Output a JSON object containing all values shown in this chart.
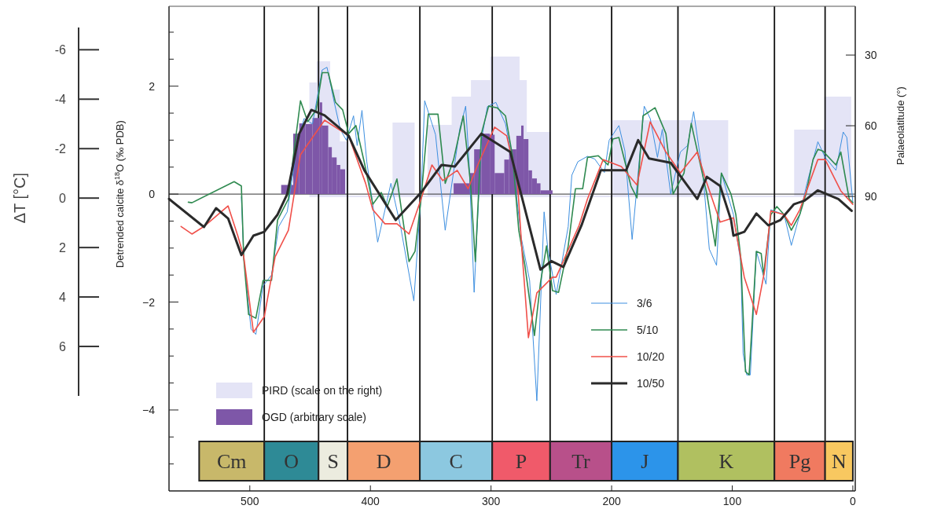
{
  "chart_data": {
    "type": "line",
    "ylabel": "Detrended calcite δ$^{18}$O (‰ PDB)",
    "y2label": "Palaeolatitude (°)",
    "y3label": "ΔT [°C]",
    "xlim": [
      567,
      -2
    ],
    "xticks": [
      500,
      400,
      300,
      200,
      100,
      0
    ],
    "ylim": [
      -5.5,
      3.48
    ],
    "yticks": [
      {
        "value": 3,
        "label": null
      },
      {
        "value": 2.5,
        "label": null
      },
      2,
      {
        "value": 1.5,
        "label": null
      },
      {
        "value": 1,
        "label": null
      },
      {
        "value": 0.5,
        "label": null
      },
      0,
      {
        "value": -0.5,
        "label": null
      },
      {
        "value": -1,
        "label": null
      },
      {
        "value": -1.5,
        "label": null
      },
      -2,
      {
        "value": -2.5,
        "label": null
      },
      {
        "value": -3,
        "label": null
      },
      {
        "value": -3.5,
        "label": null
      },
      -4,
      {
        "value": -4.5,
        "label": null
      },
      {
        "value": -5,
        "label": null
      }
    ],
    "y2lim": [
      215,
      9.3
    ],
    "y2ticks": [
      30,
      60,
      90
    ],
    "y3lim": [
      8,
      -6.9
    ],
    "y3ticks": [
      -6,
      -4,
      -2,
      0,
      2,
      4,
      6
    ],
    "legend": "bottom",
    "ref_lines": [
      {
        "axis": "y",
        "value": 0,
        "color": "#333333"
      },
      {
        "axis": "x",
        "value": 488,
        "color": "#111111"
      },
      {
        "axis": "x",
        "value": 443,
        "color": "#111111"
      },
      {
        "axis": "x",
        "value": 419,
        "color": "#111111"
      },
      {
        "axis": "x",
        "value": 359,
        "color": "#111111"
      },
      {
        "axis": "x",
        "value": 299,
        "color": "#111111"
      },
      {
        "axis": "x",
        "value": 251,
        "color": "#111111"
      },
      {
        "axis": "x",
        "value": 200,
        "color": "#111111"
      },
      {
        "axis": "x",
        "value": 145,
        "color": "#111111"
      },
      {
        "axis": "x",
        "value": 65,
        "color": "#111111"
      },
      {
        "axis": "x",
        "value": 23,
        "color": "#111111"
      }
    ],
    "bands": [
      {
        "axis": "x",
        "from": 542,
        "to": 488,
        "label": "Cm",
        "color": "#c8b86a"
      },
      {
        "axis": "x",
        "from": 488,
        "to": 443,
        "label": "O",
        "color": "#2e8a96"
      },
      {
        "axis": "x",
        "from": 443,
        "to": 419,
        "label": "S",
        "color": "#ececdf"
      },
      {
        "axis": "x",
        "from": 419,
        "to": 359,
        "label": "D",
        "color": "#f4a070"
      },
      {
        "axis": "x",
        "from": 359,
        "to": 299,
        "label": "C",
        "color": "#8cc8e0"
      },
      {
        "axis": "x",
        "from": 299,
        "to": 251,
        "label": "P",
        "color": "#f05a6a"
      },
      {
        "axis": "x",
        "from": 251,
        "to": 200,
        "label": "Tr",
        "color": "#b8508a"
      },
      {
        "axis": "x",
        "from": 200,
        "to": 145,
        "label": "J",
        "color": "#2c94ea"
      },
      {
        "axis": "x",
        "from": 145,
        "to": 65,
        "label": "K",
        "color": "#b0c060"
      },
      {
        "axis": "x",
        "from": 65,
        "to": 23,
        "label": "Pg",
        "color": "#f07a60"
      },
      {
        "axis": "x",
        "from": 23,
        "to": 0,
        "label": "N",
        "color": "#f8c860"
      }
    ],
    "series": [
      {
        "type": "area",
        "axis": "y2",
        "name": "PIRD (scale on the right)",
        "color": "#e4e4f6",
        "x": [
          450,
          450,
          444,
          444,
          434,
          434,
          426,
          426,
          420,
          420,
          381,
          381,
          364,
          364,
          352,
          352,
          332,
          332,
          316,
          316,
          300,
          300,
          277,
          277,
          271,
          271,
          251,
          251,
          199,
          199,
          104,
          104,
          48,
          48,
          23,
          23,
          2,
          2
        ],
        "values": [
          90,
          42,
          42,
          33,
          33,
          45,
          45,
          67,
          67,
          90,
          90,
          59,
          59,
          90,
          90,
          60,
          60,
          48,
          48,
          41,
          41,
          31,
          31,
          41,
          41,
          63,
          63,
          90,
          90,
          58,
          58,
          90,
          90,
          62,
          62,
          48,
          48,
          90
        ]
      },
      {
        "type": "histogram",
        "name": "OGD (arbitrary scale)",
        "color": "#7e57a8",
        "bins": [
          474,
          464,
          459,
          454,
          448,
          442,
          440,
          435,
          432,
          428,
          425,
          421,
          331,
          318,
          314,
          308,
          301,
          297,
          289,
          285,
          279,
          275,
          273,
          269,
          266,
          262,
          259,
          249
        ],
        "values": [
          0.17,
          1.12,
          1.31,
          1.3,
          1.41,
          1.7,
          1.27,
          0.87,
          0.68,
          0.54,
          0.46,
          0,
          0.2,
          0.39,
          0.83,
          1.12,
          1.1,
          0.39,
          0.64,
          0.83,
          1.08,
          1.27,
          1.02,
          0.44,
          0.29,
          0.2,
          0.07
        ]
      },
      {
        "name": "3/6",
        "color": "#3d8fe0",
        "x": [
          507,
          505,
          499,
          495,
          489,
          482,
          476,
          469,
          460,
          455,
          448,
          440,
          436,
          430,
          425,
          420,
          414,
          411,
          407,
          403,
          398,
          394,
          388,
          383,
          375,
          364,
          358,
          355,
          346,
          338,
          326,
          321,
          318,
          314,
          308,
          303,
          296,
          288,
          282,
          275,
          268,
          262,
          256,
          253,
          246,
          236,
          233,
          228,
          220,
          214,
          206,
          202,
          194,
          189,
          183,
          173,
          168,
          162,
          158,
          151,
          143,
          137,
          132,
          124,
          119,
          113,
          109,
          99,
          93,
          91,
          88,
          85,
          80,
          72,
          68,
          57,
          51,
          44,
          38,
          29,
          23,
          14,
          8,
          5,
          0
        ],
        "values": [
          -0.05,
          -1.2,
          -2.5,
          -2.6,
          -1.7,
          -1.5,
          -0.6,
          -0.33,
          1.0,
          1.4,
          1.3,
          2.3,
          2.35,
          1.7,
          1.2,
          1.0,
          1.45,
          0.9,
          1.55,
          0.6,
          -0.2,
          -0.89,
          -0.3,
          0.2,
          -0.6,
          -1.98,
          0,
          1.73,
          1.1,
          -0.67,
          1.2,
          1.63,
          0.5,
          -1.82,
          1.0,
          1.62,
          1.7,
          1.3,
          0.6,
          -0.8,
          -1.6,
          -3.83,
          -0.33,
          -1.0,
          -1.86,
          -0.6,
          0.35,
          0.6,
          0.7,
          0.65,
          0.4,
          1.0,
          1.27,
          0.8,
          -0.84,
          1.63,
          1.4,
          0.68,
          1.2,
          0,
          0.78,
          0.9,
          1.53,
          0.3,
          -1.02,
          -1.32,
          0.39,
          -0.38,
          -1.25,
          -2.95,
          -3.35,
          -3.35,
          -1.06,
          -1.67,
          -0.29,
          -0.38,
          -0.95,
          -0.38,
          0.2,
          0.97,
          0.68,
          0.44,
          1.15,
          1.05,
          -0.15
        ]
      },
      {
        "name": "5/10",
        "color": "#2f8a50",
        "x": [
          551,
          548,
          513,
          507,
          505,
          501,
          495,
          489,
          482,
          477,
          468,
          464,
          458,
          452,
          445,
          440,
          435,
          429,
          423,
          418,
          412,
          405,
          398,
          391,
          386,
          378,
          368,
          363,
          358,
          352,
          344,
          338,
          331,
          323,
          317,
          313,
          308,
          302,
          295,
          288,
          282,
          277,
          272,
          264,
          259,
          254,
          249,
          244,
          236,
          230,
          224,
          220,
          211,
          203,
          199,
          194,
          184,
          179,
          174,
          164,
          155,
          149,
          140,
          134,
          121,
          114,
          109,
          101,
          97,
          93,
          89,
          86,
          80,
          76,
          74,
          68,
          63,
          57,
          51,
          44,
          39,
          33,
          29,
          25,
          14,
          10,
          3,
          0
        ],
        "values": [
          -0.15,
          -0.16,
          0.23,
          0.15,
          -1.2,
          -2.23,
          -2.3,
          -1.6,
          -1.6,
          -0.48,
          -0.09,
          0.68,
          1.73,
          1.34,
          1.56,
          2.25,
          2.25,
          1.7,
          1.56,
          1.12,
          1.27,
          0.58,
          -0.19,
          0.03,
          -0.23,
          0.28,
          -1.25,
          -1.06,
          -0.09,
          1.48,
          1.48,
          0.2,
          0.64,
          1.45,
          0.2,
          -1.25,
          1.12,
          1.63,
          1.6,
          1.45,
          0.68,
          -0.67,
          -1.31,
          -2.62,
          -1.64,
          -0.96,
          -1.79,
          -1.82,
          -0.96,
          0.1,
          0.1,
          0.68,
          0.71,
          0.54,
          1.02,
          1.05,
          0.15,
          -0.07,
          1.45,
          1.6,
          1.12,
          0,
          0.39,
          1.31,
          0,
          -0.96,
          0.39,
          0,
          -0.38,
          -1.16,
          -3.29,
          -3.35,
          -1.06,
          -1.1,
          -1.5,
          -0.38,
          -0.23,
          -0.38,
          -0.67,
          -0.38,
          -0.01,
          0.64,
          0.83,
          0.8,
          0.54,
          0.78,
          -0.09,
          -0.16
        ]
      },
      {
        "name": "10/20",
        "color": "#f0504a",
        "x": [
          557,
          548,
          538,
          518,
          510,
          505,
          497,
          488,
          479,
          468,
          458,
          438,
          418,
          404,
          398,
          388,
          378,
          368,
          358,
          349,
          340,
          328,
          319,
          311,
          297,
          287,
          278,
          274,
          269,
          262,
          249,
          246,
          227,
          220,
          207,
          192,
          179,
          168,
          155,
          143,
          129,
          121,
          110,
          99,
          90,
          80,
          73,
          68,
          57,
          51,
          44,
          29,
          23,
          10,
          0
        ],
        "values": [
          -0.6,
          -0.74,
          -0.6,
          -0.22,
          -0.77,
          -1.16,
          -2.56,
          -2.27,
          -1.16,
          -0.67,
          0.73,
          1.37,
          1.08,
          0.2,
          -0.29,
          -0.55,
          -0.55,
          -0.74,
          -0.09,
          0.54,
          0.25,
          0.44,
          0.1,
          0.54,
          1.24,
          1.08,
          0.2,
          -1.16,
          -2.66,
          -1.83,
          -1.54,
          -1.54,
          -0.58,
          -0.09,
          0.64,
          0.51,
          0.17,
          1.34,
          0.78,
          0.39,
          0.78,
          0.2,
          -0.52,
          -0.44,
          -1.54,
          -2.23,
          -1.4,
          -0.31,
          -0.38,
          -0.58,
          -0.29,
          0.64,
          0.64,
          0.06,
          -0.19
        ]
      },
      {
        "name": "10/50",
        "color": "#2a2a2a",
        "x": [
          567,
          538,
          528,
          518,
          507,
          497,
          488,
          477,
          469,
          459,
          449,
          438,
          418,
          405,
          379,
          358,
          341,
          330,
          308,
          284,
          259,
          250,
          240,
          225,
          209,
          188,
          178,
          169,
          151,
          129,
          121,
          110,
          101,
          99,
          90,
          80,
          70,
          60,
          49,
          40,
          29,
          12,
          1
        ],
        "values": [
          -0.09,
          -0.61,
          -0.26,
          -0.45,
          -1.13,
          -0.77,
          -0.7,
          -0.38,
          0,
          1.12,
          1.56,
          1.46,
          1.08,
          0.44,
          -0.48,
          0.03,
          0.54,
          0.51,
          1.12,
          0.78,
          -1.4,
          -1.24,
          -1.35,
          -0.58,
          0.44,
          0.44,
          1.0,
          0.66,
          0.58,
          -0.09,
          0.32,
          0.15,
          -0.48,
          -0.77,
          -0.7,
          -0.36,
          -0.58,
          -0.48,
          -0.19,
          -0.12,
          0.07,
          -0.09,
          -0.31
        ]
      }
    ]
  }
}
